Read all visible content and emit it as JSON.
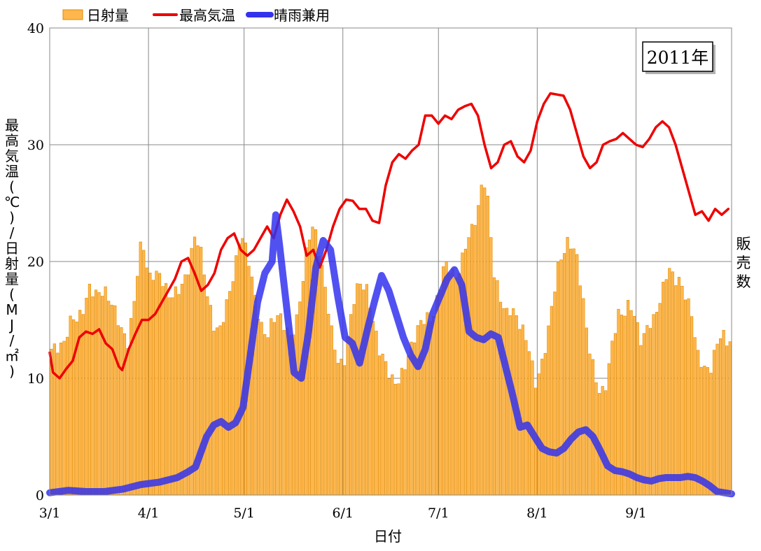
{
  "chart_data": {
    "type": "bar",
    "badge": "2011年",
    "xlabel": "日付",
    "ylabel_left": "最高気温(℃)/日射量(MJ/㎡)",
    "ylabel_right": "販売数",
    "ylim": [
      0,
      40
    ],
    "yticks": [
      "0",
      "10",
      "20",
      "30",
      "40"
    ],
    "xticks": [
      {
        "label": "3/1",
        "day": 0
      },
      {
        "label": "4/1",
        "day": 31
      },
      {
        "label": "5/1",
        "day": 61
      },
      {
        "label": "6/1",
        "day": 92
      },
      {
        "label": "7/1",
        "day": 122
      },
      {
        "label": "8/1",
        "day": 153
      },
      {
        "label": "9/1",
        "day": 184
      }
    ],
    "x_range_days": [
      0,
      214
    ],
    "grid": true,
    "legend_position": "top-left",
    "series": [
      {
        "name": "日射量",
        "kind": "bar",
        "color": "#FFB74D",
        "edge_color": "#E08A00",
        "anchors": [
          [
            0,
            12.5
          ],
          [
            4,
            12.8
          ],
          [
            7,
            15.3
          ],
          [
            9,
            15.0
          ],
          [
            11,
            16.0
          ],
          [
            13,
            17.8
          ],
          [
            15,
            17.2
          ],
          [
            18,
            17.5
          ],
          [
            21,
            16.2
          ],
          [
            24,
            14.0
          ],
          [
            26,
            13.0
          ],
          [
            28,
            16.5
          ],
          [
            30,
            21.0
          ],
          [
            31,
            21.8
          ],
          [
            33,
            18.5
          ],
          [
            35,
            19.0
          ],
          [
            37,
            18.8
          ],
          [
            40,
            17.0
          ],
          [
            43,
            17.5
          ],
          [
            46,
            18.8
          ],
          [
            48,
            21.5
          ],
          [
            49,
            22.4
          ],
          [
            51,
            20.5
          ],
          [
            53,
            17.0
          ],
          [
            55,
            14.5
          ],
          [
            57,
            14.0
          ],
          [
            59,
            16.0
          ],
          [
            61,
            18.0
          ],
          [
            63,
            20.5
          ],
          [
            64,
            22.4
          ],
          [
            65,
            22.0
          ],
          [
            67,
            20.0
          ],
          [
            69,
            17.0
          ],
          [
            71,
            14.5
          ],
          [
            73,
            13.5
          ],
          [
            75,
            15.0
          ],
          [
            77,
            15.5
          ],
          [
            79,
            14.5
          ],
          [
            81,
            13.5
          ],
          [
            83,
            14.8
          ],
          [
            85,
            18.0
          ],
          [
            87,
            22.0
          ],
          [
            89,
            23.2
          ],
          [
            91,
            20.5
          ],
          [
            93,
            17.5
          ],
          [
            95,
            14.0
          ],
          [
            97,
            11.5
          ],
          [
            99,
            11.0
          ],
          [
            101,
            14.5
          ],
          [
            103,
            17.5
          ],
          [
            105,
            18.2
          ],
          [
            107,
            17.5
          ],
          [
            109,
            15.0
          ],
          [
            111,
            12.5
          ],
          [
            113,
            11.5
          ],
          [
            115,
            10.0
          ],
          [
            117,
            9.5
          ],
          [
            119,
            10.5
          ],
          [
            121,
            12.0
          ],
          [
            123,
            13.5
          ],
          [
            125,
            14.8
          ],
          [
            127,
            15.2
          ],
          [
            129,
            15.0
          ],
          [
            131,
            17.0
          ],
          [
            133,
            19.8
          ],
          [
            135,
            19.5
          ],
          [
            137,
            18.5
          ],
          [
            139,
            20.0
          ],
          [
            141,
            22.0
          ],
          [
            143,
            23.0
          ],
          [
            145,
            25.0
          ],
          [
            146,
            26.8
          ],
          [
            147,
            26.8
          ],
          [
            148,
            25.0
          ],
          [
            149,
            22.0
          ],
          [
            150,
            19.0
          ],
          [
            152,
            17.0
          ],
          [
            154,
            15.5
          ],
          [
            156,
            16.0
          ],
          [
            158,
            15.0
          ],
          [
            160,
            14.0
          ],
          [
            162,
            12.5
          ],
          [
            164,
            9.5
          ],
          [
            166,
            11.0
          ],
          [
            168,
            13.5
          ],
          [
            170,
            17.0
          ],
          [
            172,
            20.0
          ],
          [
            174,
            21.0
          ],
          [
            175,
            21.7
          ],
          [
            176,
            21.5
          ],
          [
            178,
            20.5
          ],
          [
            180,
            17.0
          ],
          [
            182,
            13.0
          ],
          [
            184,
            10.5
          ],
          [
            186,
            8.5
          ],
          [
            188,
            9.5
          ],
          [
            190,
            13.0
          ],
          [
            192,
            15.5
          ],
          [
            194,
            15.5
          ],
          [
            196,
            16.5
          ],
          [
            198,
            15.0
          ],
          [
            200,
            13.0
          ],
          [
            202,
            14.5
          ],
          [
            204,
            15.0
          ],
          [
            206,
            16.5
          ],
          [
            208,
            18.5
          ],
          [
            209,
            19.6
          ],
          [
            211,
            18.5
          ],
          [
            213,
            18.3
          ],
          [
            215,
            17.0
          ],
          [
            217,
            15.5
          ],
          [
            219,
            12.0
          ],
          [
            221,
            11.0
          ],
          [
            223,
            10.5
          ],
          [
            225,
            12.5
          ],
          [
            227,
            14.0
          ],
          [
            229,
            13.0
          ],
          [
            231,
            13.5
          ]
        ]
      },
      {
        "name": "最高気温",
        "kind": "line",
        "color": "#EE0000",
        "values": [
          [
            0,
            12.2
          ],
          [
            1,
            10.5
          ],
          [
            3,
            10.0
          ],
          [
            5,
            10.8
          ],
          [
            7,
            11.5
          ],
          [
            9,
            13.5
          ],
          [
            11,
            14.0
          ],
          [
            13,
            13.8
          ],
          [
            15,
            14.2
          ],
          [
            17,
            13.0
          ],
          [
            19,
            12.5
          ],
          [
            21,
            11.0
          ],
          [
            22,
            10.7
          ],
          [
            24,
            12.5
          ],
          [
            26,
            13.8
          ],
          [
            28,
            15.0
          ],
          [
            30,
            15.0
          ],
          [
            32,
            15.5
          ],
          [
            34,
            16.5
          ],
          [
            36,
            17.5
          ],
          [
            38,
            18.5
          ],
          [
            40,
            20.0
          ],
          [
            42,
            20.3
          ],
          [
            44,
            19.0
          ],
          [
            46,
            17.5
          ],
          [
            48,
            18.0
          ],
          [
            50,
            19.0
          ],
          [
            52,
            21.0
          ],
          [
            54,
            22.0
          ],
          [
            56,
            22.4
          ],
          [
            58,
            21.0
          ],
          [
            60,
            20.5
          ],
          [
            62,
            21.0
          ],
          [
            64,
            22.0
          ],
          [
            66,
            23.0
          ],
          [
            68,
            22.0
          ],
          [
            70,
            24.0
          ],
          [
            72,
            25.3
          ],
          [
            74,
            24.3
          ],
          [
            76,
            23.0
          ],
          [
            78,
            20.5
          ],
          [
            80,
            21.0
          ],
          [
            82,
            19.5
          ],
          [
            84,
            21.0
          ],
          [
            86,
            23.0
          ],
          [
            88,
            24.5
          ],
          [
            90,
            25.3
          ],
          [
            92,
            25.2
          ],
          [
            94,
            24.5
          ],
          [
            96,
            24.5
          ],
          [
            98,
            23.5
          ],
          [
            100,
            23.3
          ],
          [
            102,
            26.5
          ],
          [
            104,
            28.5
          ],
          [
            106,
            29.2
          ],
          [
            108,
            28.8
          ],
          [
            110,
            29.5
          ],
          [
            112,
            30.0
          ],
          [
            114,
            32.5
          ],
          [
            116,
            32.5
          ],
          [
            118,
            31.8
          ],
          [
            120,
            32.5
          ],
          [
            122,
            32.2
          ],
          [
            124,
            33.0
          ],
          [
            126,
            33.3
          ],
          [
            128,
            33.5
          ],
          [
            130,
            32.5
          ],
          [
            132,
            30.0
          ],
          [
            134,
            28.0
          ],
          [
            136,
            28.5
          ],
          [
            138,
            30.0
          ],
          [
            140,
            30.3
          ],
          [
            142,
            29.0
          ],
          [
            144,
            28.5
          ],
          [
            146,
            29.5
          ],
          [
            148,
            32.0
          ],
          [
            150,
            33.5
          ],
          [
            152,
            34.4
          ],
          [
            154,
            34.3
          ],
          [
            156,
            34.2
          ],
          [
            158,
            33.0
          ],
          [
            160,
            31.0
          ],
          [
            162,
            29.0
          ],
          [
            164,
            28.0
          ],
          [
            166,
            28.5
          ],
          [
            168,
            30.0
          ],
          [
            170,
            30.3
          ],
          [
            172,
            30.5
          ],
          [
            174,
            31.0
          ],
          [
            176,
            30.5
          ],
          [
            178,
            30.0
          ],
          [
            180,
            29.8
          ],
          [
            182,
            30.5
          ],
          [
            184,
            31.5
          ],
          [
            186,
            32.0
          ],
          [
            188,
            31.5
          ],
          [
            190,
            30.0
          ],
          [
            192,
            28.0
          ],
          [
            194,
            26.0
          ],
          [
            196,
            24.0
          ],
          [
            198,
            24.3
          ],
          [
            200,
            23.5
          ],
          [
            202,
            24.5
          ],
          [
            204,
            24.0
          ],
          [
            206,
            24.5
          ]
        ]
      },
      {
        "name": "晴雨兼用",
        "kind": "line",
        "color": "#3333EE",
        "values": [
          [
            0,
            0.2
          ],
          [
            5,
            0.4
          ],
          [
            10,
            0.3
          ],
          [
            15,
            0.3
          ],
          [
            20,
            0.5
          ],
          [
            25,
            0.9
          ],
          [
            30,
            1.1
          ],
          [
            35,
            1.5
          ],
          [
            38,
            2.0
          ],
          [
            40,
            2.4
          ],
          [
            43,
            5.0
          ],
          [
            45,
            6.0
          ],
          [
            47,
            6.3
          ],
          [
            49,
            5.8
          ],
          [
            51,
            6.2
          ],
          [
            53,
            7.5
          ],
          [
            55,
            12.0
          ],
          [
            57,
            16.5
          ],
          [
            59,
            19.0
          ],
          [
            61,
            20.0
          ],
          [
            62,
            24.0
          ],
          [
            63,
            21.5
          ],
          [
            65,
            16.0
          ],
          [
            67,
            10.5
          ],
          [
            69,
            10.0
          ],
          [
            71,
            14.0
          ],
          [
            73,
            19.5
          ],
          [
            75,
            21.8
          ],
          [
            77,
            21.0
          ],
          [
            79,
            17.0
          ],
          [
            81,
            13.5
          ],
          [
            83,
            13.0
          ],
          [
            85,
            11.3
          ],
          [
            87,
            14.0
          ],
          [
            89,
            16.5
          ],
          [
            91,
            18.8
          ],
          [
            93,
            17.5
          ],
          [
            95,
            15.5
          ],
          [
            97,
            13.5
          ],
          [
            99,
            12.0
          ],
          [
            101,
            11.0
          ],
          [
            103,
            12.5
          ],
          [
            105,
            15.5
          ],
          [
            107,
            17.0
          ],
          [
            109,
            18.5
          ],
          [
            111,
            19.3
          ],
          [
            113,
            18.0
          ],
          [
            115,
            14.0
          ],
          [
            117,
            13.5
          ],
          [
            119,
            13.3
          ],
          [
            121,
            13.8
          ],
          [
            123,
            13.5
          ],
          [
            125,
            11.0
          ],
          [
            127,
            8.5
          ],
          [
            129,
            5.8
          ],
          [
            131,
            6.0
          ],
          [
            133,
            5.0
          ],
          [
            135,
            4.0
          ],
          [
            137,
            3.7
          ],
          [
            139,
            3.6
          ],
          [
            141,
            4.0
          ],
          [
            143,
            4.8
          ],
          [
            145,
            5.4
          ],
          [
            147,
            5.6
          ],
          [
            149,
            5.0
          ],
          [
            151,
            3.8
          ],
          [
            153,
            2.5
          ],
          [
            155,
            2.1
          ],
          [
            157,
            2.0
          ],
          [
            159,
            1.8
          ],
          [
            161,
            1.5
          ],
          [
            163,
            1.3
          ],
          [
            165,
            1.2
          ],
          [
            167,
            1.4
          ],
          [
            169,
            1.5
          ],
          [
            171,
            1.5
          ],
          [
            173,
            1.5
          ],
          [
            175,
            1.6
          ],
          [
            177,
            1.5
          ],
          [
            179,
            1.2
          ],
          [
            181,
            0.8
          ],
          [
            183,
            0.3
          ],
          [
            185,
            0.2
          ],
          [
            187,
            0.1
          ]
        ]
      }
    ]
  }
}
